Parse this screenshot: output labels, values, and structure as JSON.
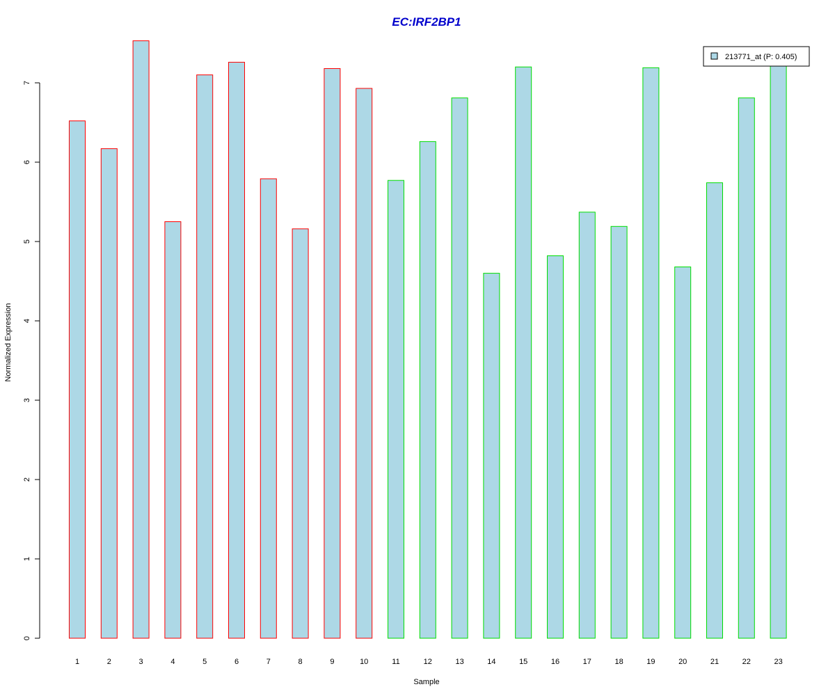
{
  "chart_data": {
    "type": "bar",
    "title": "EC:IRF2BP1",
    "xlabel": "Sample",
    "ylabel": "Normalized Expression",
    "categories": [
      "1",
      "2",
      "3",
      "4",
      "5",
      "6",
      "7",
      "8",
      "9",
      "10",
      "11",
      "12",
      "13",
      "14",
      "15",
      "16",
      "17",
      "18",
      "19",
      "20",
      "21",
      "22",
      "23"
    ],
    "series": [
      {
        "name": "213771_at (P: 0.405)",
        "values": [
          6.52,
          6.17,
          7.53,
          5.25,
          7.1,
          7.26,
          5.79,
          5.16,
          7.18,
          6.93,
          5.77,
          6.26,
          6.81,
          4.6,
          7.2,
          4.82,
          5.37,
          5.19,
          7.19,
          4.68,
          5.74,
          6.81,
          7.25
        ]
      }
    ],
    "group_outline": [
      "red",
      "red",
      "red",
      "red",
      "red",
      "red",
      "red",
      "red",
      "red",
      "red",
      "green",
      "green",
      "green",
      "green",
      "green",
      "green",
      "green",
      "green",
      "green",
      "green",
      "green",
      "green",
      "green"
    ],
    "yticks": [
      "0",
      "1",
      "2",
      "3",
      "4",
      "5",
      "6",
      "7"
    ],
    "ylim": [
      0,
      7.6
    ],
    "grid": false,
    "legend_placement": "top-right",
    "colors": {
      "title": "#0000cc",
      "bar_fill": "#add8e6",
      "red": "#ff0000",
      "green": "#00dd00",
      "axis": "#000000"
    }
  }
}
